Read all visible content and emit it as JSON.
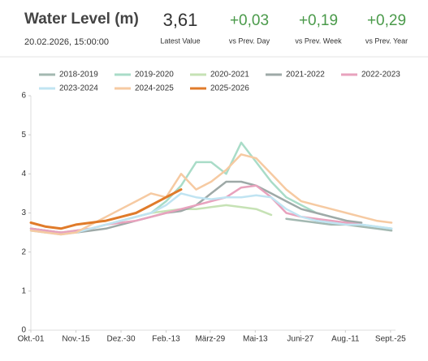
{
  "header": {
    "title": "Water Level (m)",
    "timestamp": "20.02.2026, 15:00:00",
    "stats": [
      {
        "value": "3,61",
        "label": "Latest Value"
      },
      {
        "value": "+0,03",
        "label": "vs Prev. Day"
      },
      {
        "value": "+0,19",
        "label": "vs Prev. Week"
      },
      {
        "value": "+0,29",
        "label": "vs Prev. Year"
      }
    ]
  },
  "chart_data": {
    "type": "line",
    "x": [
      0,
      15,
      30,
      45,
      60,
      75,
      90,
      105,
      120,
      135,
      150,
      165,
      180,
      195,
      210,
      225,
      240,
      255,
      270,
      285,
      300,
      315,
      330,
      345,
      360
    ],
    "xlim": [
      0,
      364
    ],
    "xticks": [
      {
        "value": 0,
        "label": "Okt.-01"
      },
      {
        "value": 45,
        "label": "Nov.-15"
      },
      {
        "value": 90,
        "label": "Dez.-30"
      },
      {
        "value": 135,
        "label": "Feb.-13"
      },
      {
        "value": 179,
        "label": "März-29"
      },
      {
        "value": 224,
        "label": "Mai-13"
      },
      {
        "value": 269,
        "label": "Juni-27"
      },
      {
        "value": 314,
        "label": "Aug.-11"
      },
      {
        "value": 359,
        "label": "Sept.-25"
      }
    ],
    "ylim": [
      0,
      6
    ],
    "yticks": [
      0,
      1,
      2,
      3,
      4,
      5,
      6
    ],
    "grid": false,
    "series": [
      {
        "name": "2018-2019",
        "color": "#a3b8b1",
        "values": [
          null,
          null,
          null,
          null,
          null,
          null,
          null,
          null,
          null,
          null,
          null,
          null,
          null,
          null,
          null,
          null,
          null,
          2.85,
          2.8,
          2.75,
          2.7,
          2.7,
          2.65,
          2.6,
          2.55
        ]
      },
      {
        "name": "2019-2020",
        "color": "#a9dcc8",
        "values": [
          2.6,
          2.55,
          2.5,
          2.5,
          2.6,
          2.7,
          2.8,
          2.9,
          3.0,
          3.3,
          3.7,
          4.3,
          4.3,
          4.0,
          4.8,
          4.3,
          3.8,
          3.4,
          3.2,
          3.0,
          2.9,
          2.8,
          2.7,
          2.65,
          2.6
        ]
      },
      {
        "name": "2020-2021",
        "color": "#c6e2b5",
        "values": [
          2.55,
          2.5,
          2.5,
          2.55,
          2.6,
          2.7,
          2.8,
          2.9,
          3.0,
          3.05,
          3.1,
          3.1,
          3.15,
          3.2,
          3.15,
          3.1,
          2.95,
          null,
          null,
          null,
          null,
          null,
          null,
          null,
          null
        ]
      },
      {
        "name": "2021-2022",
        "color": "#9ea9a7",
        "values": [
          2.6,
          2.55,
          2.5,
          2.5,
          2.55,
          2.6,
          2.7,
          2.8,
          2.9,
          3.0,
          3.05,
          3.2,
          3.5,
          3.8,
          3.8,
          3.7,
          3.5,
          3.3,
          3.1,
          3.0,
          2.9,
          2.8,
          2.75,
          null,
          null
        ]
      },
      {
        "name": "2022-2023",
        "color": "#e8a2bd",
        "values": [
          2.6,
          2.55,
          2.5,
          2.55,
          2.6,
          2.7,
          2.75,
          2.8,
          2.9,
          3.0,
          3.1,
          3.2,
          3.3,
          3.4,
          3.65,
          3.7,
          3.4,
          3.0,
          2.9,
          2.85,
          2.8,
          2.75,
          2.7,
          null,
          null
        ]
      },
      {
        "name": "2023-2024",
        "color": "#c0e4f2",
        "values": [
          2.55,
          2.5,
          2.45,
          2.5,
          2.6,
          2.7,
          2.8,
          2.9,
          3.0,
          3.2,
          3.5,
          3.4,
          3.35,
          3.4,
          3.4,
          3.45,
          3.4,
          3.1,
          2.9,
          2.8,
          2.75,
          2.7,
          2.7,
          2.65,
          2.6
        ]
      },
      {
        "name": "2024-2025",
        "color": "#f6caa2",
        "values": [
          2.55,
          2.5,
          2.45,
          2.5,
          2.7,
          2.9,
          3.1,
          3.3,
          3.5,
          3.4,
          4.0,
          3.6,
          3.8,
          4.1,
          4.5,
          4.4,
          4.0,
          3.6,
          3.3,
          3.2,
          3.1,
          3.0,
          2.9,
          2.8,
          2.75
        ]
      },
      {
        "name": "2025-2026",
        "color": "#e07b2a",
        "values": [
          2.75,
          2.65,
          2.6,
          2.7,
          2.75,
          2.8,
          2.9,
          3.0,
          3.2,
          3.4,
          3.6,
          null,
          null,
          null,
          null,
          null,
          null,
          null,
          null,
          null,
          null,
          null,
          null,
          null,
          null
        ]
      }
    ]
  }
}
